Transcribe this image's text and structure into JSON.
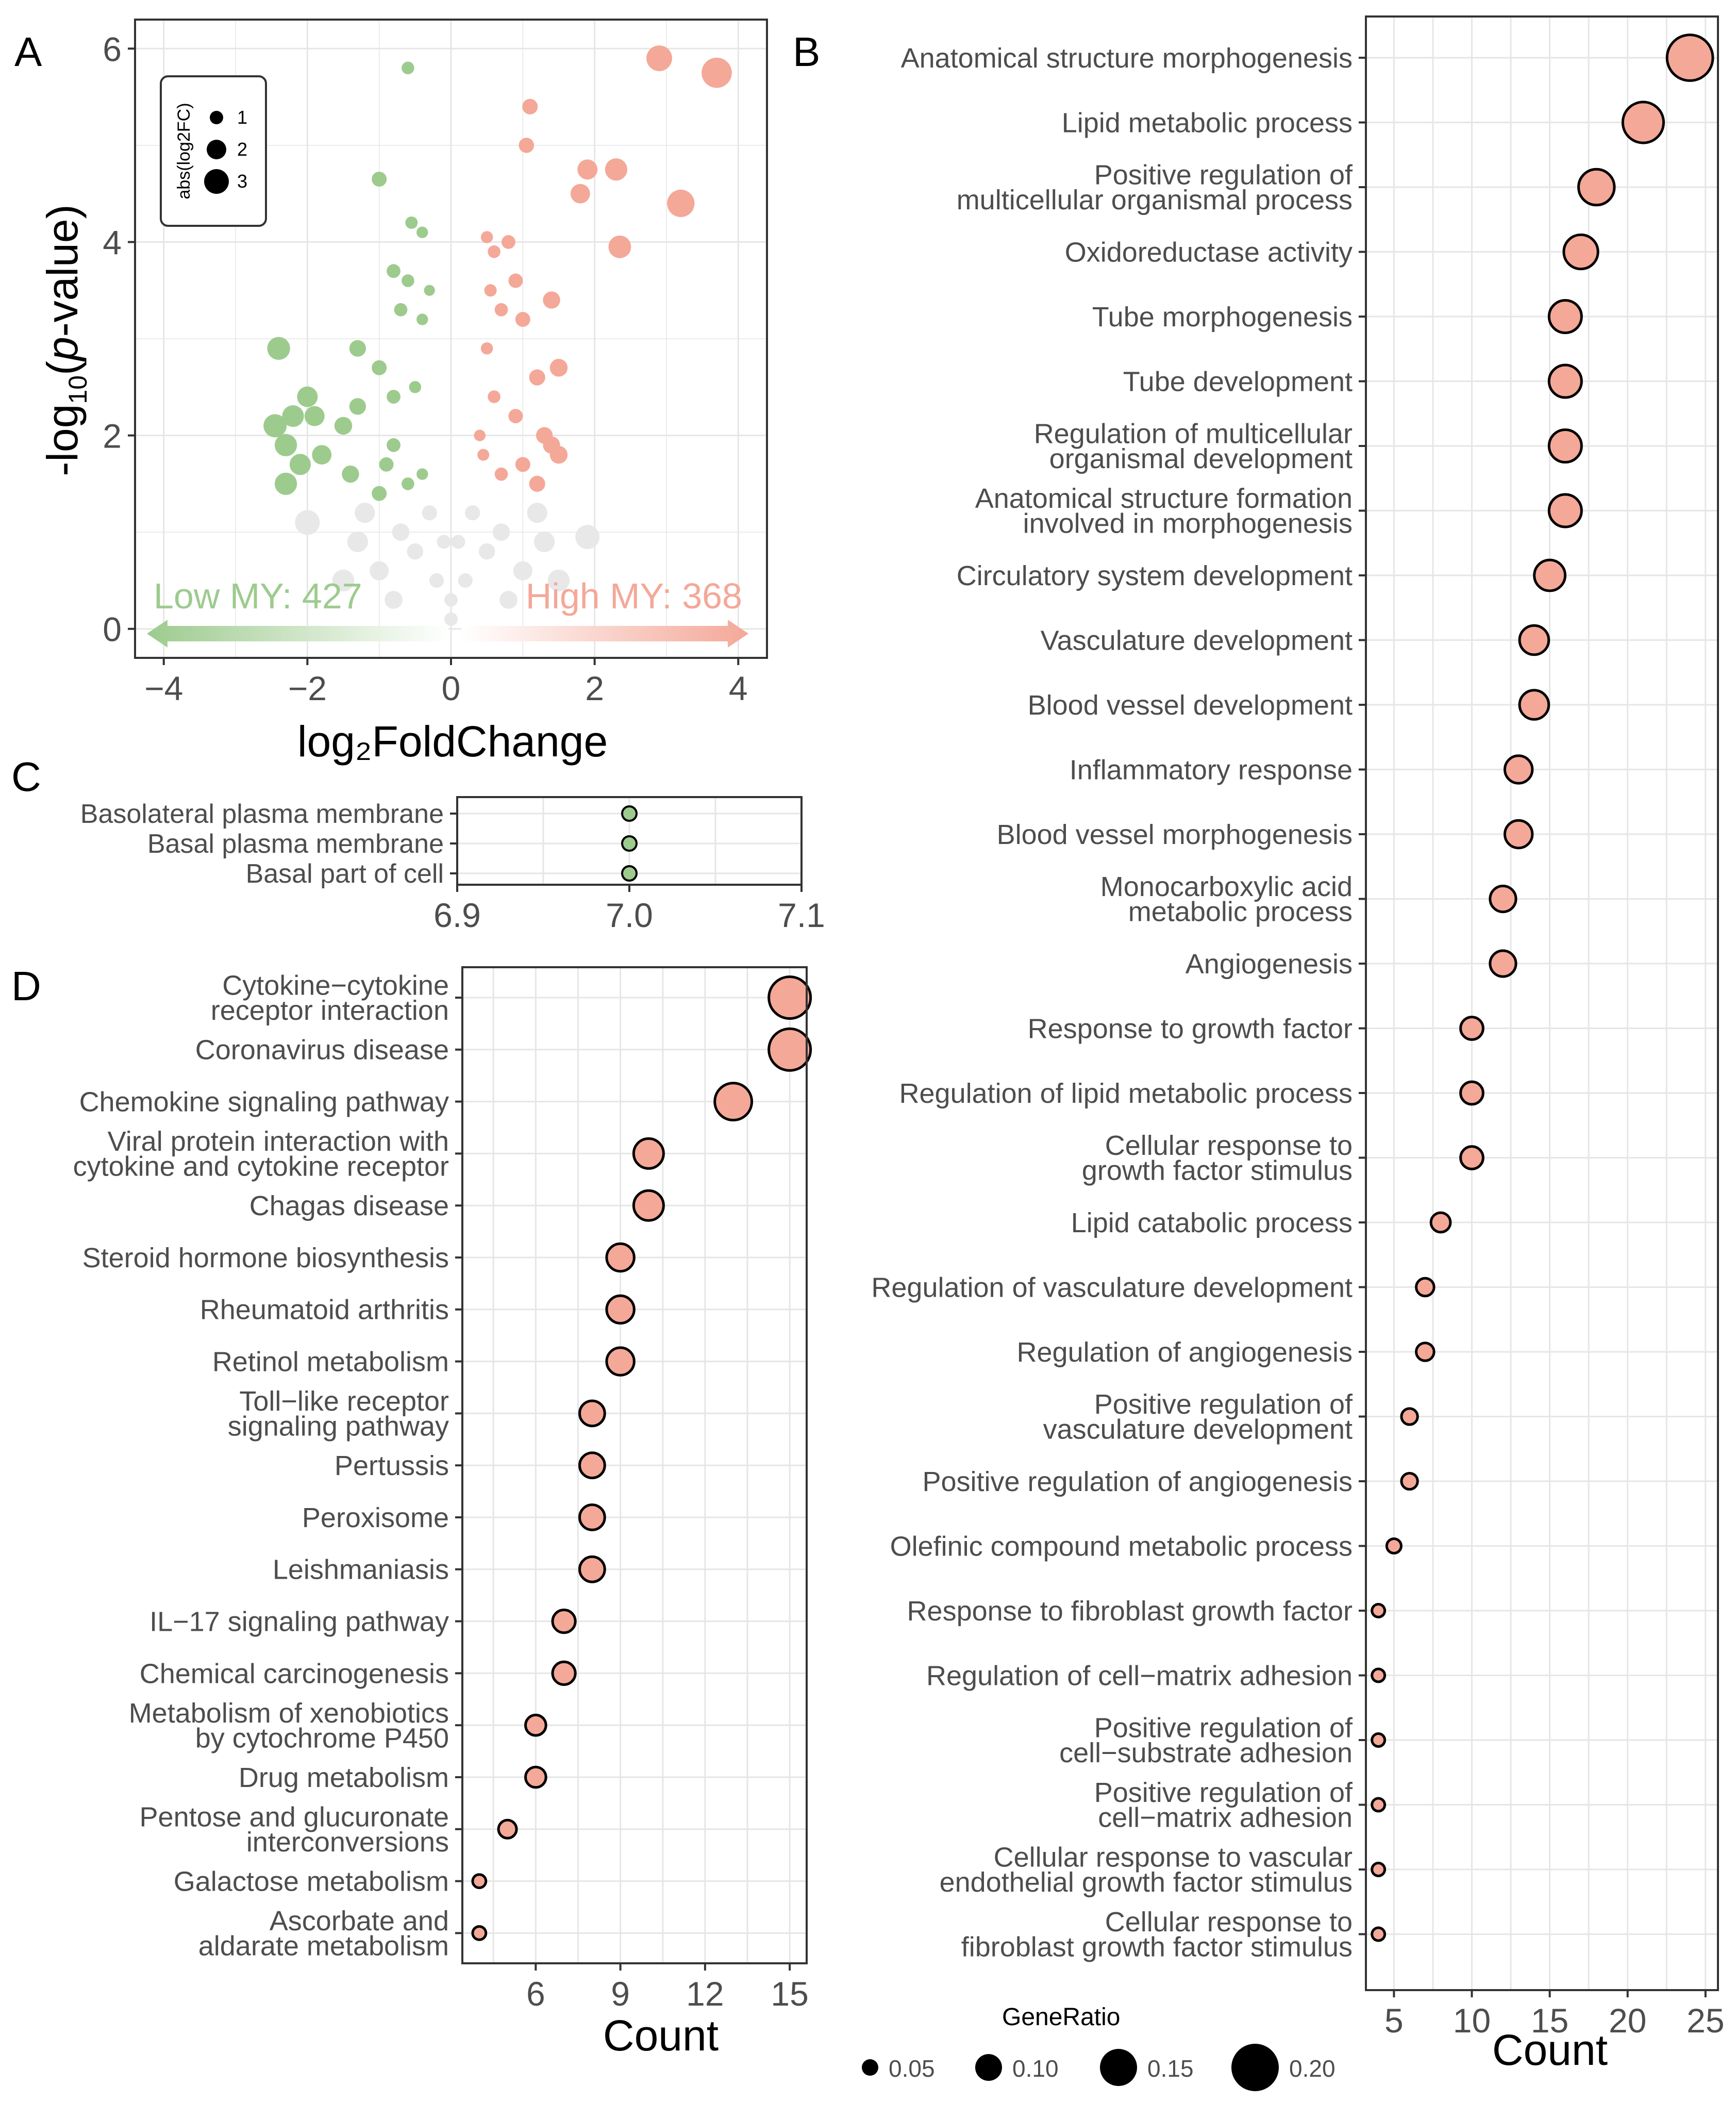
{
  "colors": {
    "up": "#F4A898",
    "down": "#9DCB8E",
    "neutral": "#E8E8E8",
    "grid": "#E6E6E6",
    "axis_text": "#4D4D4D",
    "point_fill": "#F4A898",
    "point_fill_c": "#9DCB8E"
  },
  "chart_data": [
    {
      "panel": "A",
      "type": "scatter",
      "xlabel": "log₂FoldChange",
      "ylabel_prefix": "-log",
      "ylabel_sub": "10",
      "ylabel_open": "(",
      "ylabel_italic": "p",
      "ylabel_rest": "-value)",
      "xlim": [
        -4.4,
        4.4
      ],
      "ylim": [
        -0.3,
        6.3
      ],
      "xticks": [
        -4,
        -2,
        0,
        2,
        4
      ],
      "xtick_labels": [
        "−4",
        "−2",
        "0",
        "2",
        "4"
      ],
      "yticks": [
        0,
        2,
        4,
        6
      ],
      "ytick_labels": [
        "0",
        "2",
        "4",
        "6"
      ],
      "legend_title": "abs(log2FC)",
      "legend_sizes": [
        1,
        2,
        3
      ],
      "legend_labels": [
        "1",
        "2",
        "3"
      ],
      "low_label": "Low MY: 427",
      "high_label": "High MY: 368",
      "high_points": [
        [
          2.9,
          5.9
        ],
        [
          3.7,
          5.75
        ],
        [
          1.1,
          5.4
        ],
        [
          1.05,
          5.0
        ],
        [
          1.9,
          4.75
        ],
        [
          2.3,
          4.75
        ],
        [
          1.8,
          4.5
        ],
        [
          3.2,
          4.4
        ],
        [
          2.35,
          3.95
        ],
        [
          0.5,
          4.05
        ],
        [
          0.8,
          4.0
        ],
        [
          0.6,
          3.9
        ],
        [
          1.4,
          3.4
        ],
        [
          0.9,
          3.6
        ],
        [
          0.55,
          3.5
        ],
        [
          0.7,
          3.3
        ],
        [
          1.0,
          3.2
        ],
        [
          0.5,
          2.9
        ],
        [
          1.5,
          2.7
        ],
        [
          0.6,
          2.4
        ],
        [
          0.9,
          2.2
        ],
        [
          1.3,
          2.0
        ],
        [
          0.45,
          1.8
        ],
        [
          1.5,
          1.8
        ],
        [
          1.2,
          1.5
        ],
        [
          0.7,
          1.6
        ],
        [
          1.0,
          1.7
        ],
        [
          1.4,
          1.9
        ],
        [
          0.4,
          2.0
        ],
        [
          1.2,
          2.6
        ]
      ],
      "low_points": [
        [
          -0.6,
          5.8
        ],
        [
          -1.0,
          4.65
        ],
        [
          -0.55,
          4.2
        ],
        [
          -0.4,
          4.1
        ],
        [
          -0.8,
          3.7
        ],
        [
          -0.6,
          3.6
        ],
        [
          -0.3,
          3.5
        ],
        [
          -0.7,
          3.3
        ],
        [
          -0.4,
          3.2
        ],
        [
          -2.4,
          2.9
        ],
        [
          -1.3,
          2.9
        ],
        [
          -1.0,
          2.7
        ],
        [
          -0.5,
          2.5
        ],
        [
          -2.0,
          2.4
        ],
        [
          -1.9,
          2.2
        ],
        [
          -2.2,
          2.2
        ],
        [
          -1.3,
          2.3
        ],
        [
          -2.45,
          2.1
        ],
        [
          -2.3,
          1.9
        ],
        [
          -1.8,
          1.8
        ],
        [
          -0.8,
          1.9
        ],
        [
          -2.1,
          1.7
        ],
        [
          -1.4,
          1.6
        ],
        [
          -2.3,
          1.5
        ],
        [
          -0.6,
          1.5
        ],
        [
          -1.0,
          1.4
        ],
        [
          -0.4,
          1.6
        ],
        [
          -0.8,
          2.4
        ],
        [
          -1.5,
          2.1
        ],
        [
          -0.9,
          1.7
        ]
      ],
      "neutral_points": [
        [
          -0.2,
          0.5
        ],
        [
          0.2,
          0.5
        ],
        [
          -0.5,
          0.8
        ],
        [
          0.5,
          0.8
        ],
        [
          -1.0,
          0.6
        ],
        [
          1.0,
          0.6
        ],
        [
          1.9,
          0.95
        ],
        [
          -1.5,
          0.5
        ],
        [
          1.5,
          0.5
        ],
        [
          -0.3,
          1.2
        ],
        [
          0.3,
          1.2
        ],
        [
          -0.7,
          1.0
        ],
        [
          0.7,
          1.0
        ],
        [
          0.0,
          0.3
        ],
        [
          -0.1,
          0.9
        ],
        [
          0.1,
          0.9
        ],
        [
          -1.3,
          0.9
        ],
        [
          1.3,
          0.9
        ],
        [
          -0.8,
          0.3
        ],
        [
          0.8,
          0.3
        ],
        [
          0.0,
          0.1
        ],
        [
          -2.0,
          1.1
        ],
        [
          1.2,
          1.2
        ],
        [
          -1.2,
          1.2
        ]
      ]
    },
    {
      "panel": "B",
      "type": "scatter",
      "xlabel": "Count",
      "xlim": [
        3.2,
        25.8
      ],
      "xticks": [
        5,
        10,
        15,
        20,
        25
      ],
      "xtick_labels": [
        "5",
        "10",
        "15",
        "20",
        "25"
      ],
      "terms": [
        [
          "Anatomical structure morphogenesis"
        ],
        [
          "Lipid metabolic process"
        ],
        [
          "Positive regulation of",
          "multicellular organismal process"
        ],
        [
          "Oxidoreductase activity"
        ],
        [
          "Tube morphogenesis"
        ],
        [
          "Tube development"
        ],
        [
          "Regulation of multicellular",
          "organismal development"
        ],
        [
          "Anatomical structure formation",
          "involved in morphogenesis"
        ],
        [
          "Circulatory system development"
        ],
        [
          "Vasculature development"
        ],
        [
          "Blood vessel development"
        ],
        [
          "Inflammatory response"
        ],
        [
          "Blood vessel morphogenesis"
        ],
        [
          "Monocarboxylic acid",
          "metabolic process"
        ],
        [
          "Angiogenesis"
        ],
        [
          "Response to growth factor"
        ],
        [
          "Regulation of lipid metabolic process"
        ],
        [
          "Cellular response to",
          "growth factor stimulus"
        ],
        [
          "Lipid catabolic process"
        ],
        [
          "Regulation of vasculature development"
        ],
        [
          "Regulation of angiogenesis"
        ],
        [
          "Positive regulation of",
          "vasculature development"
        ],
        [
          "Positive regulation of angiogenesis"
        ],
        [
          "Olefinic compound metabolic process"
        ],
        [
          "Response to fibroblast growth factor"
        ],
        [
          "Regulation of cell−matrix adhesion"
        ],
        [
          "Positive regulation of",
          "cell−substrate adhesion"
        ],
        [
          "Positive regulation of",
          "cell−matrix adhesion"
        ],
        [
          "Cellular response to vascular",
          "endothelial growth factor stimulus"
        ],
        [
          "Cellular response to",
          "fibroblast growth factor stimulus"
        ]
      ],
      "counts": [
        24,
        21,
        18,
        17,
        16,
        16,
        16,
        16,
        15,
        14,
        14,
        13,
        13,
        12,
        12,
        10,
        10,
        10,
        8,
        7,
        7,
        6,
        6,
        5,
        4,
        4,
        4,
        4,
        4,
        4
      ],
      "gene_ratio": [
        0.167,
        0.146,
        0.125,
        0.118,
        0.111,
        0.111,
        0.111,
        0.111,
        0.104,
        0.097,
        0.097,
        0.09,
        0.09,
        0.083,
        0.083,
        0.069,
        0.069,
        0.069,
        0.056,
        0.049,
        0.049,
        0.042,
        0.042,
        0.035,
        0.028,
        0.028,
        0.028,
        0.028,
        0.028,
        0.028
      ]
    },
    {
      "panel": "C",
      "type": "scatter",
      "xlim": [
        6.9,
        7.1
      ],
      "xticks": [
        6.9,
        7.0,
        7.1
      ],
      "xtick_labels": [
        "6.9",
        "7.0",
        "7.1"
      ],
      "terms": [
        [
          "Basolateral plasma membrane"
        ],
        [
          "Basal plasma membrane"
        ],
        [
          "Basal part of cell"
        ]
      ],
      "counts": [
        7,
        7,
        7
      ],
      "gene_ratio": [
        0.04,
        0.04,
        0.04
      ]
    },
    {
      "panel": "D",
      "type": "scatter",
      "xlabel": "Count",
      "xlim": [
        3.4,
        15.6
      ],
      "xticks": [
        6,
        9,
        12,
        15
      ],
      "xtick_labels": [
        "6",
        "9",
        "12",
        "15"
      ],
      "terms": [
        [
          "Cytokine−cytokine",
          "receptor interaction"
        ],
        [
          "Coronavirus disease"
        ],
        [
          "Chemokine signaling pathway"
        ],
        [
          "Viral protein interaction with",
          "cytokine and cytokine receptor"
        ],
        [
          "Chagas disease"
        ],
        [
          "Steroid hormone biosynthesis"
        ],
        [
          "Rheumatoid arthritis"
        ],
        [
          "Retinol metabolism"
        ],
        [
          "Toll−like receptor",
          "signaling pathway"
        ],
        [
          "Pertussis"
        ],
        [
          "Peroxisome"
        ],
        [
          "Leishmaniasis"
        ],
        [
          "IL−17 signaling pathway"
        ],
        [
          "Chemical carcinogenesis"
        ],
        [
          "Metabolism of xenobiotics",
          "by cytochrome P450"
        ],
        [
          "Drug metabolism"
        ],
        [
          "Pentose and glucuronate",
          "interconversions"
        ],
        [
          "Galactose metabolism"
        ],
        [
          "Ascorbate and",
          "aldarate metabolism"
        ]
      ],
      "counts": [
        15,
        15,
        13,
        10,
        10,
        9,
        9,
        9,
        8,
        8,
        8,
        8,
        7,
        7,
        6,
        6,
        5,
        4,
        4
      ],
      "gene_ratio": [
        0.15,
        0.15,
        0.13,
        0.1,
        0.1,
        0.09,
        0.09,
        0.09,
        0.08,
        0.08,
        0.08,
        0.08,
        0.07,
        0.07,
        0.06,
        0.06,
        0.05,
        0.03,
        0.03
      ]
    }
  ],
  "panel_labels": [
    "A",
    "B",
    "C",
    "D"
  ],
  "generatio_legend": {
    "title": "GeneRatio",
    "values": [
      0.05,
      0.1,
      0.15,
      0.2
    ],
    "labels": [
      "0.05",
      "0.10",
      "0.15",
      "0.20"
    ]
  }
}
